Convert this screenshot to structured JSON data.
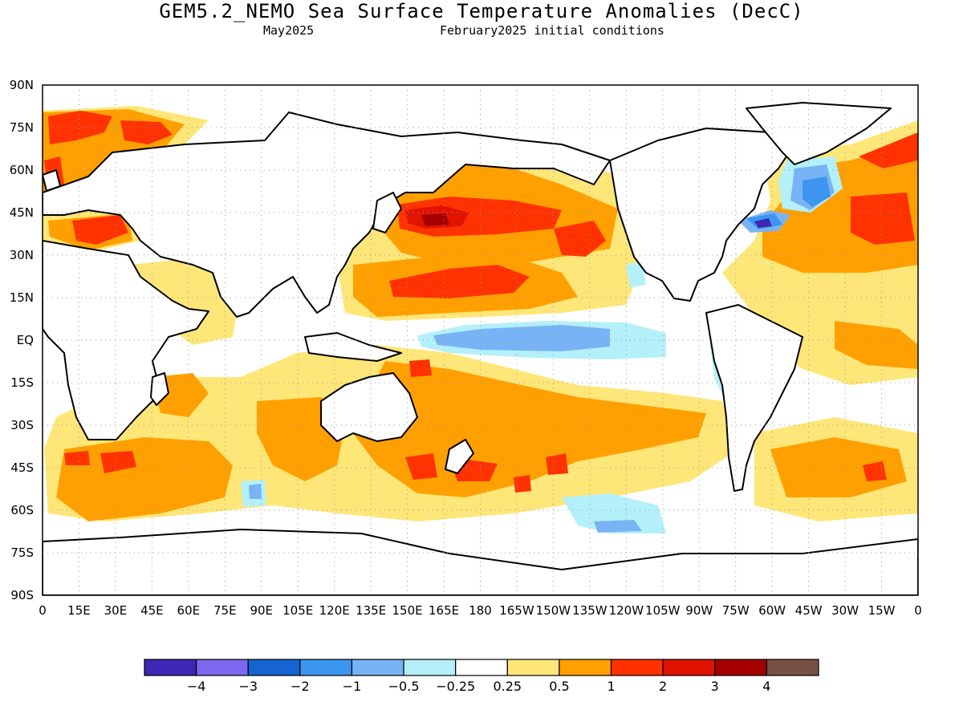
{
  "title": "GEM5.2_NEMO Sea Surface Temperature Anomalies (DecC)",
  "subtitle_left": "May2025",
  "subtitle_right": "February2025 initial conditions",
  "lat_labels": [
    "90N",
    "75N",
    "60N",
    "45N",
    "30N",
    "15N",
    "EQ",
    "15S",
    "30S",
    "45S",
    "60S",
    "75S",
    "90S"
  ],
  "lon_labels": [
    "0",
    "15E",
    "30E",
    "45E",
    "60E",
    "75E",
    "90E",
    "105E",
    "120E",
    "135E",
    "150E",
    "165E",
    "180",
    "165W",
    "150W",
    "135W",
    "120W",
    "105W",
    "90W",
    "75W",
    "60W",
    "45W",
    "30W",
    "15W",
    "0"
  ],
  "colorbar": {
    "colors": [
      "#3c28b4",
      "#7b68ee",
      "#1464d2",
      "#3c96f0",
      "#78b4f5",
      "#b4f0fa",
      "#ffffff",
      "#ffe678",
      "#ffa000",
      "#ff3200",
      "#e11400",
      "#a50000",
      "#785046"
    ],
    "labels": [
      "-4",
      "-3",
      "-2",
      "-1",
      "-0.5",
      "-0.25",
      "0.25",
      "0.5",
      "1",
      "2",
      "3",
      "4"
    ]
  },
  "map_colors": {
    "ocean_background": "#ffffff",
    "coastline": "#000000"
  }
}
